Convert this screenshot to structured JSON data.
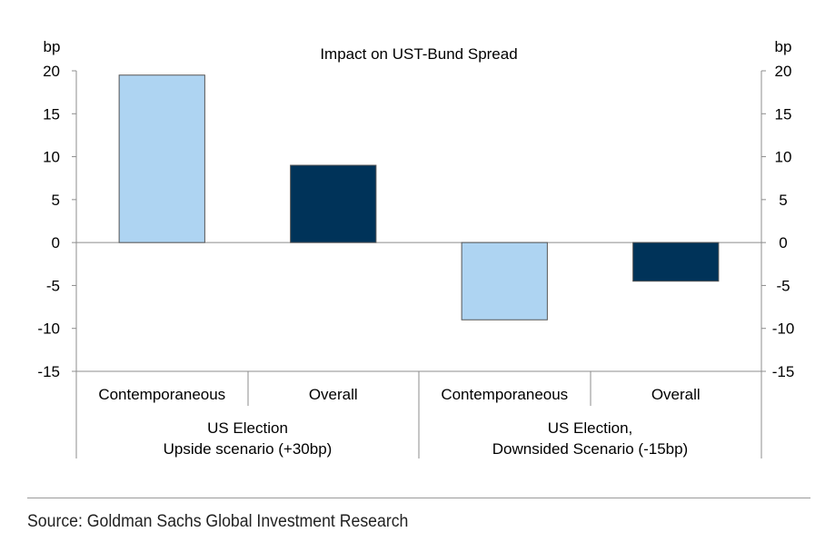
{
  "chart_data": {
    "type": "bar",
    "title": "Impact on UST-Bund Spread",
    "y_unit_left": "bp",
    "y_unit_right": "bp",
    "ylim": [
      -15,
      20
    ],
    "yticks": [
      20,
      15,
      10,
      5,
      0,
      -5,
      -10,
      -15
    ],
    "categories": [
      "Contemporaneous",
      "Overall",
      "Contemporaneous",
      "Overall"
    ],
    "groups": [
      {
        "label_line1": "US Election",
        "label_line2": "Upside scenario (+30bp)"
      },
      {
        "label_line1": "US Election,",
        "label_line2": "Downsided Scenario (-15bp)"
      }
    ],
    "values": [
      19.5,
      9.0,
      -9.0,
      -4.5
    ],
    "bar_colors": [
      "#aed4f2",
      "#003359",
      "#aed4f2",
      "#003359"
    ],
    "grid": false
  },
  "footer": {
    "source": "Source: Goldman Sachs Global Investment Research"
  }
}
